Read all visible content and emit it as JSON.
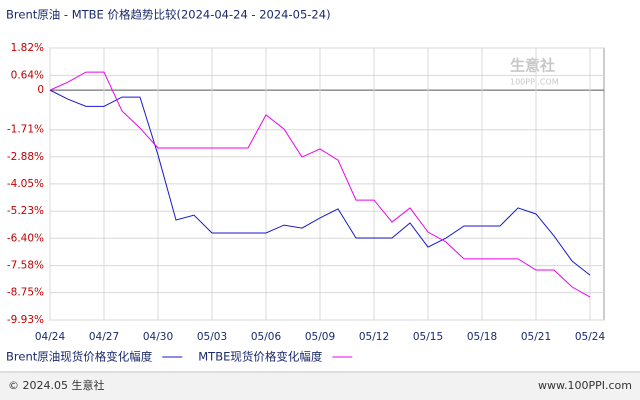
{
  "chart_data": {
    "type": "line",
    "title": "Brent原油 - MTBE 价格趋势比较(2024-04-24 - 2024-05-24)",
    "categories": [
      "04/24",
      null,
      null,
      "04/27",
      null,
      null,
      "04/30",
      null,
      null,
      "05/03",
      null,
      null,
      "05/06",
      null,
      null,
      "05/09",
      null,
      null,
      "05/12",
      null,
      null,
      "05/15",
      null,
      null,
      "05/18",
      null,
      null,
      "05/21",
      null,
      null,
      "05/24"
    ],
    "series": [
      {
        "name": "Brent原油现货价格变化幅度",
        "color": "#1a1acc",
        "values": [
          0,
          -0.39,
          -0.7,
          -0.7,
          -0.3,
          -0.3,
          -2.8,
          -5.61,
          -5.4,
          -6.17,
          -6.17,
          -6.17,
          -6.17,
          -5.83,
          -5.96,
          -5.52,
          -5.13,
          -6.39,
          -6.39,
          -6.39,
          -5.74,
          -6.78,
          -6.39,
          -5.87,
          -5.87,
          -5.87,
          -5.09,
          -5.35,
          -6.3,
          -7.38,
          -7.99
        ]
      },
      {
        "name": "MTBE现货价格变化幅度",
        "color": "#ee00ee",
        "values": [
          0,
          0.35,
          0.78,
          0.78,
          -0.9,
          -1.64,
          -2.5,
          -2.5,
          -2.5,
          -2.5,
          -2.5,
          -2.5,
          -1.07,
          -1.68,
          -2.89,
          -2.54,
          -3.02,
          -4.75,
          -4.75,
          -5.7,
          -5.09,
          -6.13,
          -6.56,
          -7.29,
          -7.29,
          -7.29,
          -7.29,
          -7.77,
          -7.77,
          -8.5,
          -8.94
        ]
      }
    ],
    "ylim": [
      -9.93,
      1.82
    ],
    "yticks": [
      {
        "value": 1.82,
        "label": "1.82%"
      },
      {
        "value": 0.64,
        "label": "0.64%"
      },
      0,
      {
        "value": -1.71,
        "label": "-1.71%"
      },
      {
        "value": -2.88,
        "label": "-2.88%"
      },
      {
        "value": -4.05,
        "label": "-4.05%"
      },
      {
        "value": -5.23,
        "label": "-5.23%"
      },
      {
        "value": -6.4,
        "label": "-6.40%"
      },
      {
        "value": -7.58,
        "label": "-7.58%"
      },
      {
        "value": -8.75,
        "label": "-8.75%"
      },
      {
        "value": -9.93,
        "label": "-9.93%"
      }
    ],
    "grid": true,
    "watermark": [
      "生意社",
      "100PPI.COM"
    ],
    "footer": {
      "left": "© 2024.05 生意社",
      "right": "www.100PPI.com"
    }
  }
}
